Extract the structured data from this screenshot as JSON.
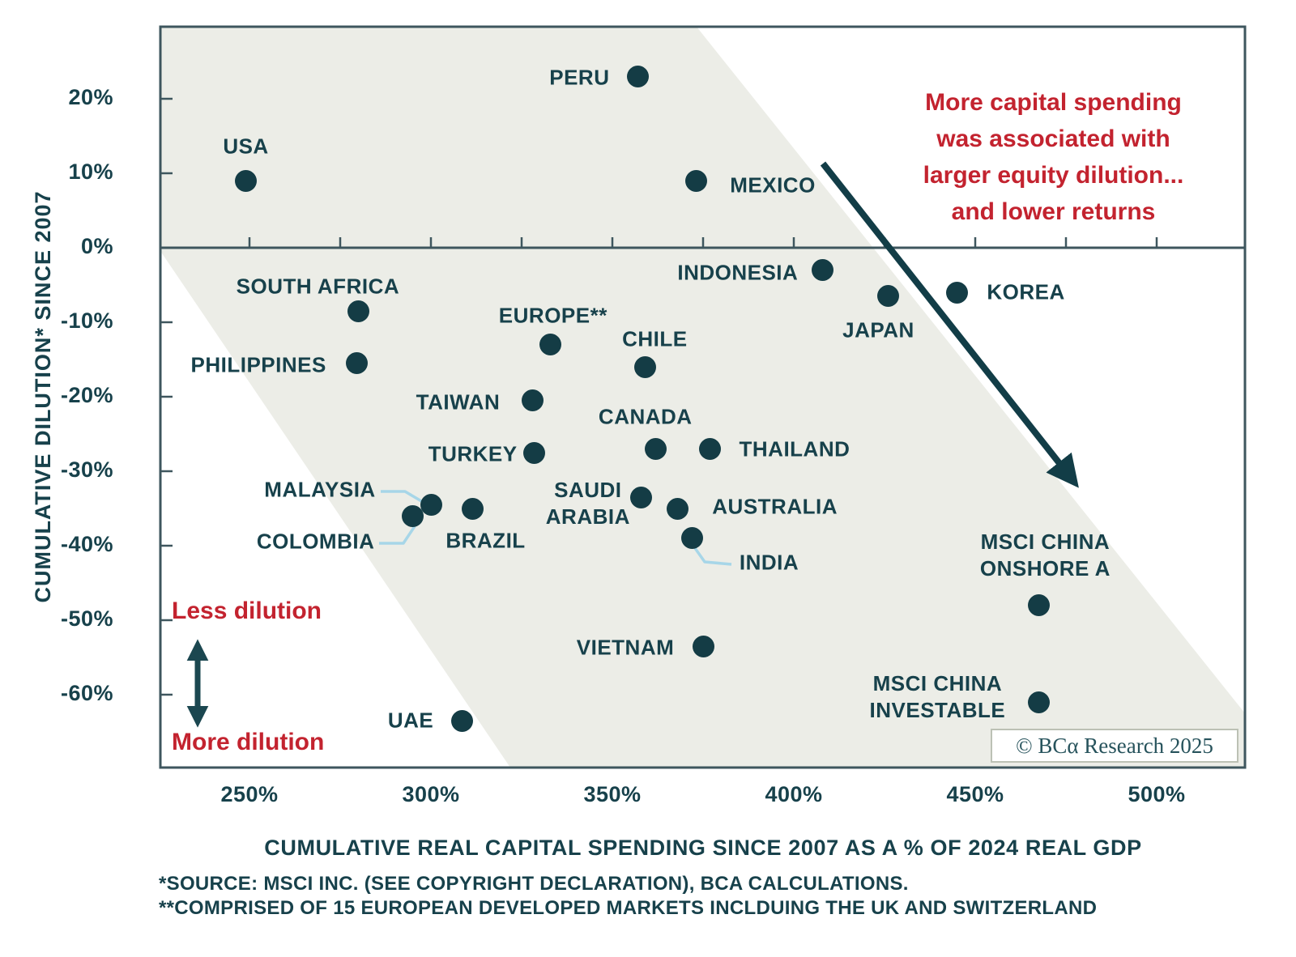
{
  "annotation": {
    "text": "More capital spending\nwas associated with\nlarger equity dilution...\nand lower returns"
  },
  "labels": {
    "less_dilution": "Less dilution",
    "more_dilution": "More dilution"
  },
  "copyright": {
    "text": "© BCα Research 2025"
  },
  "footnotes": {
    "line1": "*SOURCE: MSCI INC. (SEE COPYRIGHT DECLARATION), BCA CALCULATIONS.",
    "line2": "**COMPRISED OF 15 EUROPEAN DEVELOPED MARKETS INCLDUING THE UK AND SWITZERLAND"
  },
  "colors": {
    "ink": "#17414b",
    "dot": "#143c45",
    "accent_red": "#c3232f",
    "band_gray": "#ecede7",
    "connector_blue": "#a7d6e8"
  },
  "chart_data": {
    "type": "scatter",
    "title": "",
    "xlabel": "CUMULATIVE REAL CAPITAL SPENDING SINCE 2007 AS A % OF 2024 REAL GDP",
    "ylabel": "CUMULATIVE DILUTION* SINCE 2007",
    "x_unit": "percent",
    "y_unit": "percent",
    "xlim": [
      222,
      516
    ],
    "ylim": [
      -69,
      30
    ],
    "grid": false,
    "legend": "none",
    "x_ticks": [
      {
        "label": "250%",
        "value": 250
      },
      {
        "label": "300%",
        "value": 300
      },
      {
        "label": "350%",
        "value": 350
      },
      {
        "label": "400%",
        "value": 400
      },
      {
        "label": "450%",
        "value": 450
      },
      {
        "label": "500%",
        "value": 500
      }
    ],
    "y_ticks": [
      {
        "label": "20%",
        "value": 20
      },
      {
        "label": "10%",
        "value": 10
      },
      {
        "label": "0%",
        "value": 0
      },
      {
        "label": "-10%",
        "value": -10
      },
      {
        "label": "-20%",
        "value": -20
      },
      {
        "label": "-30%",
        "value": -30
      },
      {
        "label": "-40%",
        "value": -40
      },
      {
        "label": "-50%",
        "value": -50
      },
      {
        "label": "-60%",
        "value": -60
      }
    ],
    "points": [
      {
        "name": "usa",
        "label": "USA",
        "x": 249,
        "y": 9
      },
      {
        "name": "peru",
        "label": "PERU",
        "x": 357,
        "y": 23
      },
      {
        "name": "mexico",
        "label": "MEXICO",
        "x": 373,
        "y": 9
      },
      {
        "name": "south-africa",
        "label": "SOUTH AFRICA",
        "x": 280,
        "y": -8.5
      },
      {
        "name": "indonesia",
        "label": "INDONESIA",
        "x": 408,
        "y": -3
      },
      {
        "name": "japan",
        "label": "JAPAN",
        "x": 426,
        "y": -6.5
      },
      {
        "name": "korea",
        "label": "KOREA",
        "x": 445,
        "y": -6
      },
      {
        "name": "europe",
        "label": "EUROPE**",
        "x": 333,
        "y": -13
      },
      {
        "name": "chile",
        "label": "CHILE",
        "x": 359,
        "y": -16
      },
      {
        "name": "philippines",
        "label": "PHILIPPINES",
        "x": 279.5,
        "y": -15.5
      },
      {
        "name": "taiwan",
        "label": "TAIWAN",
        "x": 328,
        "y": -20.5
      },
      {
        "name": "turkey",
        "label": "TURKEY",
        "x": 328.5,
        "y": -27.5
      },
      {
        "name": "canada",
        "label": "CANADA",
        "x": 362,
        "y": -27
      },
      {
        "name": "thailand",
        "label": "THAILAND",
        "x": 377,
        "y": -27
      },
      {
        "name": "saudi-arabia",
        "label": "SAUDI\nARABIA",
        "x": 358,
        "y": -33.5
      },
      {
        "name": "australia",
        "label": "AUSTRALIA",
        "x": 368,
        "y": -35
      },
      {
        "name": "malaysia",
        "label": "MALAYSIA",
        "x": 300,
        "y": -34.5
      },
      {
        "name": "colombia",
        "label": "COLOMBIA",
        "x": 295,
        "y": -36
      },
      {
        "name": "brazil",
        "label": "BRAZIL",
        "x": 311.5,
        "y": -35
      },
      {
        "name": "india",
        "label": "INDIA",
        "x": 372,
        "y": -39
      },
      {
        "name": "vietnam",
        "label": "VIETNAM",
        "x": 375,
        "y": -53.5
      },
      {
        "name": "uae",
        "label": "UAE",
        "x": 308.5,
        "y": -63.5
      },
      {
        "name": "msci-china-onshore-a",
        "label": "MSCI CHINA\nONSHORE A",
        "x": 467.5,
        "y": -48
      },
      {
        "name": "msci-china-investable",
        "label": "MSCI CHINA\nINVESTABLE",
        "x": 467.5,
        "y": -61
      }
    ],
    "annotations": [
      "More capital spending was associated with larger equity dilution... and lower returns",
      "Less dilution / More dilution",
      "Gray diagonal band from upper-left to lower-right indicating the spending-dilution relationship"
    ]
  }
}
